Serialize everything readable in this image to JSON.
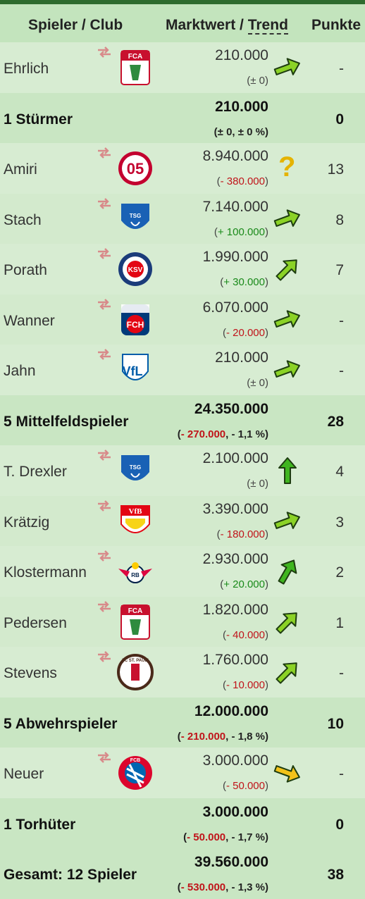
{
  "header": {
    "player_club": "Spieler / Club",
    "market_value": "Marktwert /",
    "trend": "Trend",
    "points": "Punkte"
  },
  "rows": [
    {
      "type": "player",
      "name": "Ehrlich",
      "club": "FC Augsburg",
      "value": "210.000",
      "change_prefix": "(",
      "change": "± 0",
      "change_suffix": ")",
      "change_sign": "zero",
      "trend": "slight-up",
      "points": "-"
    },
    {
      "type": "summary",
      "label": "1 Stürmer",
      "value": "210.000",
      "change_text": "(± 0, ± 0 %)",
      "points": "0"
    },
    {
      "type": "player",
      "name": "Amiri",
      "club": "Mainz 05",
      "value": "8.940.000",
      "change_prefix": "(",
      "change": "- 380.000",
      "change_suffix": ")",
      "change_sign": "neg",
      "trend": "unknown",
      "points": "13"
    },
    {
      "type": "player",
      "name": "Stach",
      "club": "TSG Hoffenheim",
      "value": "7.140.000",
      "change_prefix": "(",
      "change": "+ 100.000",
      "change_suffix": ")",
      "change_sign": "pos",
      "trend": "slight-up",
      "points": "8"
    },
    {
      "type": "player",
      "name": "Porath",
      "club": "Holstein Kiel",
      "value": "1.990.000",
      "change_prefix": "(",
      "change": "+ 30.000",
      "change_suffix": ")",
      "change_sign": "pos",
      "trend": "up-right",
      "points": "7"
    },
    {
      "type": "player",
      "name": "Wanner",
      "club": "1. FC Heidenheim",
      "value": "6.070.000",
      "change_prefix": "(",
      "change": "- 20.000",
      "change_suffix": ")",
      "change_sign": "neg",
      "trend": "slight-up",
      "points": "-"
    },
    {
      "type": "player",
      "name": "Jahn",
      "club": "VfL Bochum",
      "value": "210.000",
      "change_prefix": "(",
      "change": "± 0",
      "change_suffix": ")",
      "change_sign": "zero",
      "trend": "slight-up",
      "points": "-"
    },
    {
      "type": "summary",
      "label": "5 Mittelfeldspieler",
      "value": "24.350.000",
      "change_pre": "(",
      "change_neg": "- 270.000",
      "change_post": ", - 1,1 %)",
      "points": "28"
    },
    {
      "type": "player",
      "name": "T. Drexler",
      "club": "TSG Hoffenheim",
      "value": "2.100.000",
      "change_prefix": "(",
      "change": "± 0",
      "change_suffix": ")",
      "change_sign": "zero",
      "trend": "up",
      "points": "4"
    },
    {
      "type": "player",
      "name": "Krätzig",
      "club": "VfB Stuttgart",
      "value": "3.390.000",
      "change_prefix": "(",
      "change": "- 180.000",
      "change_suffix": ")",
      "change_sign": "neg",
      "trend": "slight-up",
      "points": "3"
    },
    {
      "type": "player",
      "name": "Klostermann",
      "club": "RB Leipzig",
      "value": "2.930.000",
      "change_prefix": "(",
      "change": "+ 20.000",
      "change_suffix": ")",
      "change_sign": "pos",
      "trend": "up-right-strong",
      "points": "2"
    },
    {
      "type": "player",
      "name": "Pedersen",
      "club": "FC Augsburg",
      "value": "1.820.000",
      "change_prefix": "(",
      "change": "- 40.000",
      "change_suffix": ")",
      "change_sign": "neg",
      "trend": "up-right",
      "points": "1"
    },
    {
      "type": "player",
      "name": "Stevens",
      "club": "FC St. Pauli",
      "value": "1.760.000",
      "change_prefix": "(",
      "change": "- 10.000",
      "change_suffix": ")",
      "change_sign": "neg",
      "trend": "up-right",
      "points": "-"
    },
    {
      "type": "summary",
      "label": "5 Abwehrspieler",
      "value": "12.000.000",
      "change_pre": "(",
      "change_neg": "- 210.000",
      "change_post": ", - 1,8 %)",
      "points": "10"
    },
    {
      "type": "player",
      "name": "Neuer",
      "club": "FC Bayern München",
      "value": "3.000.000",
      "change_prefix": "(",
      "change": "- 50.000",
      "change_suffix": ")",
      "change_sign": "neg",
      "trend": "slight-down",
      "points": "-"
    },
    {
      "type": "summary",
      "label": "1 Torhüter",
      "value": "3.000.000",
      "change_pre": "(",
      "change_neg": "- 50.000",
      "change_post": ", - 1,7 %)",
      "points": "0"
    },
    {
      "type": "summary",
      "label": "Gesamt: 12 Spieler",
      "value": "39.560.000",
      "change_pre": "(",
      "change_neg": "- 530.000",
      "change_post": ", - 1,3 %)",
      "points": "38"
    }
  ],
  "logo_text": {
    "FC Augsburg": "FCA",
    "1. FC Heidenheim": "FCH",
    "VfB Stuttgart": "VfB",
    "VfL Bochum": "VfL",
    "Holstein Kiel": "KSV",
    "Mainz 05": "05",
    "FC St. Pauli": "FC ST. PAULI",
    "RB Leipzig": "RB",
    "FC Bayern München": "FCB",
    "TSG Hoffenheim": "TSG"
  },
  "colors": {
    "arrow_green": "#8bd226",
    "arrow_strong": "#3fb51f",
    "arrow_yellow": "#f2c21a",
    "negative": "#c0141a",
    "positive": "#1a8a1a"
  }
}
